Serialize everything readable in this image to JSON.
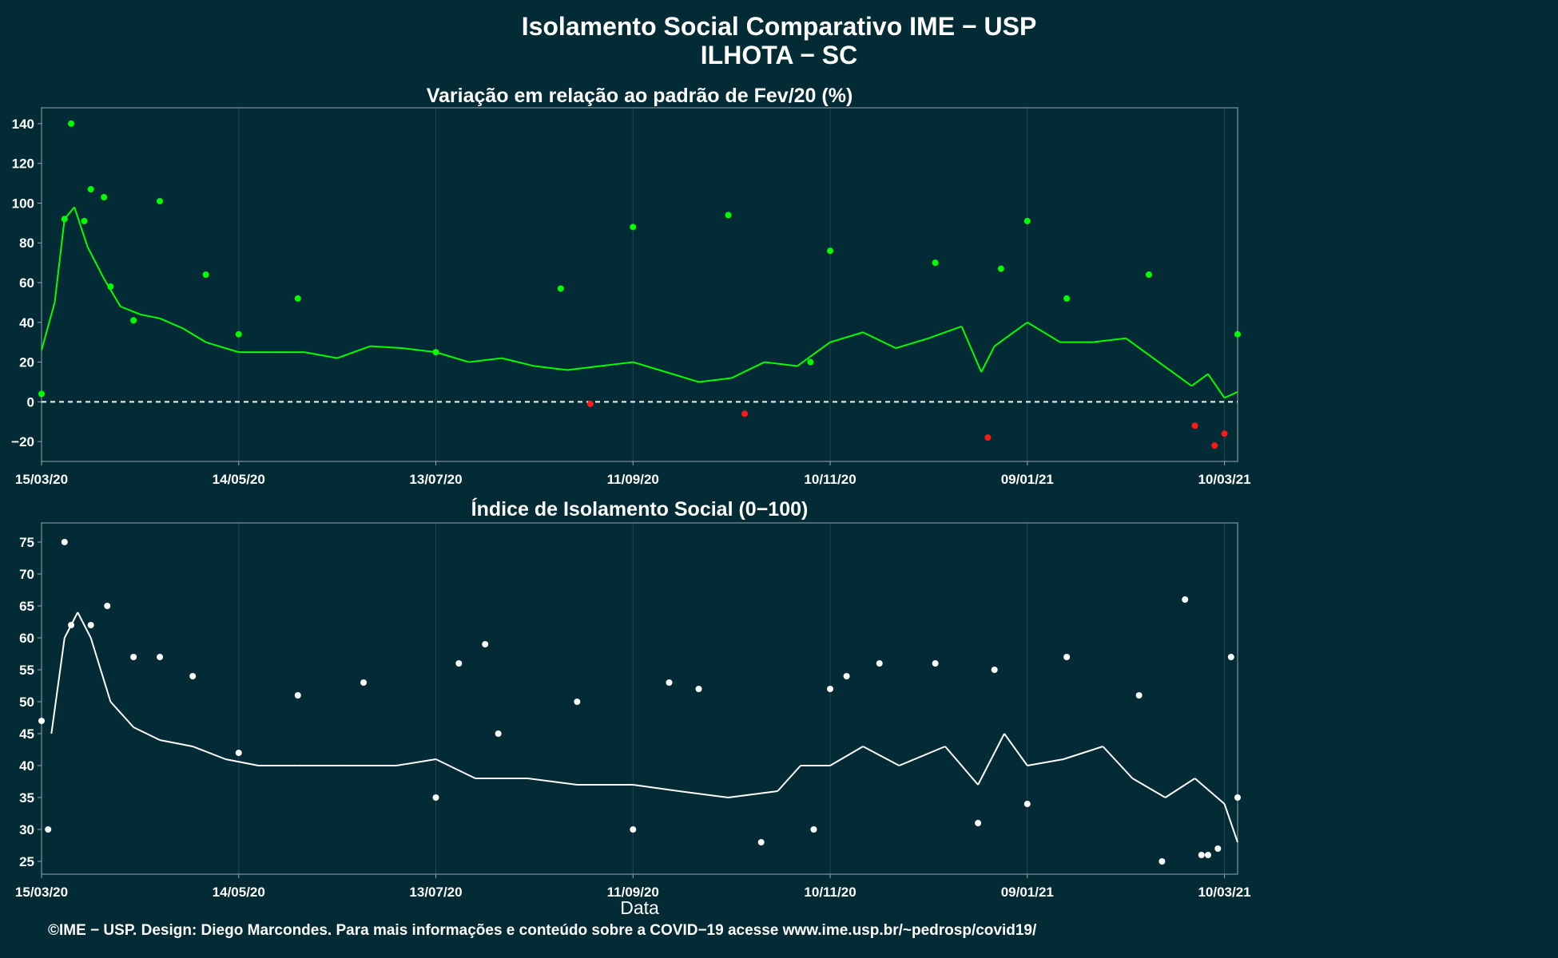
{
  "header": {
    "title_line1": "Isolamento Social Comparativo IME − USP",
    "title_line2": "ILHOTA − SC"
  },
  "footer": {
    "credit": "©IME − USP. Design: Diego Marcondes. Para mais informações e conteúdo sobre a COVID−19 acesse www.ime.usp.br/~pedrosp/covid19/"
  },
  "colors": {
    "background": "#022b36",
    "positive": "#00ff00",
    "negative": "#ff1a1a",
    "index": "#ffffff",
    "grid": "#1e4652",
    "axis": "#9aa7ad"
  },
  "chart_data": [
    {
      "type": "scatter",
      "title": "Variação em relação ao padrão de Fev/20 (%)",
      "xlabel": "",
      "ylabel": "",
      "x_ticks": [
        "15/03/20",
        "14/05/20",
        "13/07/20",
        "11/09/20",
        "10/11/20",
        "09/01/21",
        "10/03/21"
      ],
      "x_range": [
        "15/03/20",
        "14/03/21"
      ],
      "y_ticks": [
        -20,
        0,
        20,
        40,
        60,
        80,
        100,
        120,
        140
      ],
      "ylim": [
        -30,
        148
      ],
      "reference_line": 0,
      "series": [
        {
          "kind": "points",
          "color_rule": "green if >= 0, red if < 0",
          "x": [
            "15/03/20",
            "22/03/20",
            "24/03/20",
            "28/03/20",
            "30/03/20",
            "03/04/20",
            "05/04/20",
            "12/04/20",
            "20/04/20",
            "04/05/20",
            "14/05/20",
            "01/06/20",
            "13/07/20",
            "20/08/20",
            "29/08/20",
            "11/09/20",
            "10/10/20",
            "15/10/20",
            "04/11/20",
            "10/11/20",
            "12/12/20",
            "28/12/20",
            "01/01/21",
            "09/01/21",
            "21/01/21",
            "15/02/21",
            "01/03/21",
            "07/03/21",
            "10/03/21",
            "14/03/21"
          ],
          "y": [
            4,
            92,
            140,
            91,
            107,
            103,
            58,
            41,
            101,
            64,
            34,
            52,
            25,
            57,
            -1,
            88,
            94,
            -6,
            20,
            76,
            70,
            -18,
            67,
            91,
            52,
            64,
            -12,
            -22,
            -16,
            34
          ]
        },
        {
          "kind": "moving_average",
          "x": [
            "15/03/20",
            "19/03/20",
            "22/03/20",
            "25/03/20",
            "29/03/20",
            "03/04/20",
            "08/04/20",
            "14/04/20",
            "20/04/20",
            "27/04/20",
            "04/05/20",
            "14/05/20",
            "24/05/20",
            "03/06/20",
            "13/06/20",
            "23/06/20",
            "03/07/20",
            "13/07/20",
            "23/07/20",
            "02/08/20",
            "12/08/20",
            "22/08/20",
            "01/09/20",
            "11/09/20",
            "21/09/20",
            "01/10/20",
            "11/10/20",
            "21/10/20",
            "31/10/20",
            "10/11/20",
            "20/11/20",
            "30/11/20",
            "10/12/20",
            "20/12/20",
            "26/12/20",
            "30/12/20",
            "09/01/21",
            "19/01/21",
            "29/01/21",
            "08/02/21",
            "18/02/21",
            "28/02/21",
            "05/03/21",
            "10/03/21",
            "14/03/21"
          ],
          "y": [
            26,
            50,
            92,
            98,
            78,
            62,
            48,
            44,
            42,
            37,
            30,
            25,
            25,
            25,
            22,
            28,
            27,
            25,
            20,
            22,
            18,
            16,
            18,
            20,
            15,
            10,
            12,
            20,
            18,
            30,
            35,
            27,
            32,
            38,
            15,
            28,
            40,
            30,
            30,
            32,
            20,
            8,
            14,
            2,
            5
          ]
        }
      ]
    },
    {
      "type": "scatter",
      "title": "Índice de Isolamento Social (0−100)",
      "xlabel": "Data",
      "ylabel": "",
      "x_ticks": [
        "15/03/20",
        "14/05/20",
        "13/07/20",
        "11/09/20",
        "10/11/20",
        "09/01/21",
        "10/03/21"
      ],
      "x_range": [
        "15/03/20",
        "14/03/21"
      ],
      "y_ticks": [
        25,
        30,
        35,
        40,
        45,
        50,
        55,
        60,
        65,
        70,
        75
      ],
      "ylim": [
        23,
        78
      ],
      "series": [
        {
          "kind": "points",
          "x": [
            "15/03/20",
            "17/03/20",
            "22/03/20",
            "24/03/20",
            "30/03/20",
            "04/04/20",
            "12/04/20",
            "20/04/20",
            "30/04/20",
            "14/05/20",
            "01/06/20",
            "21/06/20",
            "13/07/20",
            "20/07/20",
            "28/07/20",
            "01/08/20",
            "25/08/20",
            "11/09/20",
            "22/09/20",
            "01/10/20",
            "20/10/20",
            "05/11/20",
            "10/11/20",
            "15/11/20",
            "25/11/20",
            "12/12/20",
            "25/12/20",
            "30/12/20",
            "09/01/21",
            "21/01/21",
            "12/02/21",
            "19/02/21",
            "26/02/21",
            "03/03/21",
            "05/03/21",
            "08/03/21",
            "12/03/21",
            "14/03/21"
          ],
          "y": [
            47,
            30,
            75,
            62,
            62,
            65,
            57,
            57,
            54,
            42,
            51,
            53,
            35,
            56,
            59,
            45,
            50,
            30,
            53,
            52,
            28,
            30,
            52,
            54,
            56,
            56,
            31,
            55,
            34,
            57,
            51,
            25,
            66,
            26,
            26,
            27,
            57,
            35
          ]
        },
        {
          "kind": "moving_average",
          "x": [
            "18/03/20",
            "22/03/20",
            "26/03/20",
            "30/03/20",
            "05/04/20",
            "12/04/20",
            "20/04/20",
            "30/04/20",
            "10/05/20",
            "20/05/20",
            "01/06/20",
            "15/06/20",
            "01/07/20",
            "13/07/20",
            "25/07/20",
            "10/08/20",
            "25/08/20",
            "11/09/20",
            "25/09/20",
            "10/10/20",
            "25/10/20",
            "01/11/20",
            "10/11/20",
            "20/11/20",
            "01/12/20",
            "15/12/20",
            "25/12/20",
            "02/01/21",
            "09/01/21",
            "20/01/21",
            "01/02/21",
            "10/02/21",
            "20/02/21",
            "01/03/21",
            "10/03/21",
            "14/03/21"
          ],
          "y": [
            45,
            60,
            64,
            60,
            50,
            46,
            44,
            43,
            41,
            40,
            40,
            40,
            40,
            41,
            38,
            38,
            37,
            37,
            36,
            35,
            36,
            40,
            40,
            43,
            40,
            43,
            37,
            45,
            40,
            41,
            43,
            38,
            35,
            38,
            34,
            28
          ]
        }
      ]
    }
  ]
}
